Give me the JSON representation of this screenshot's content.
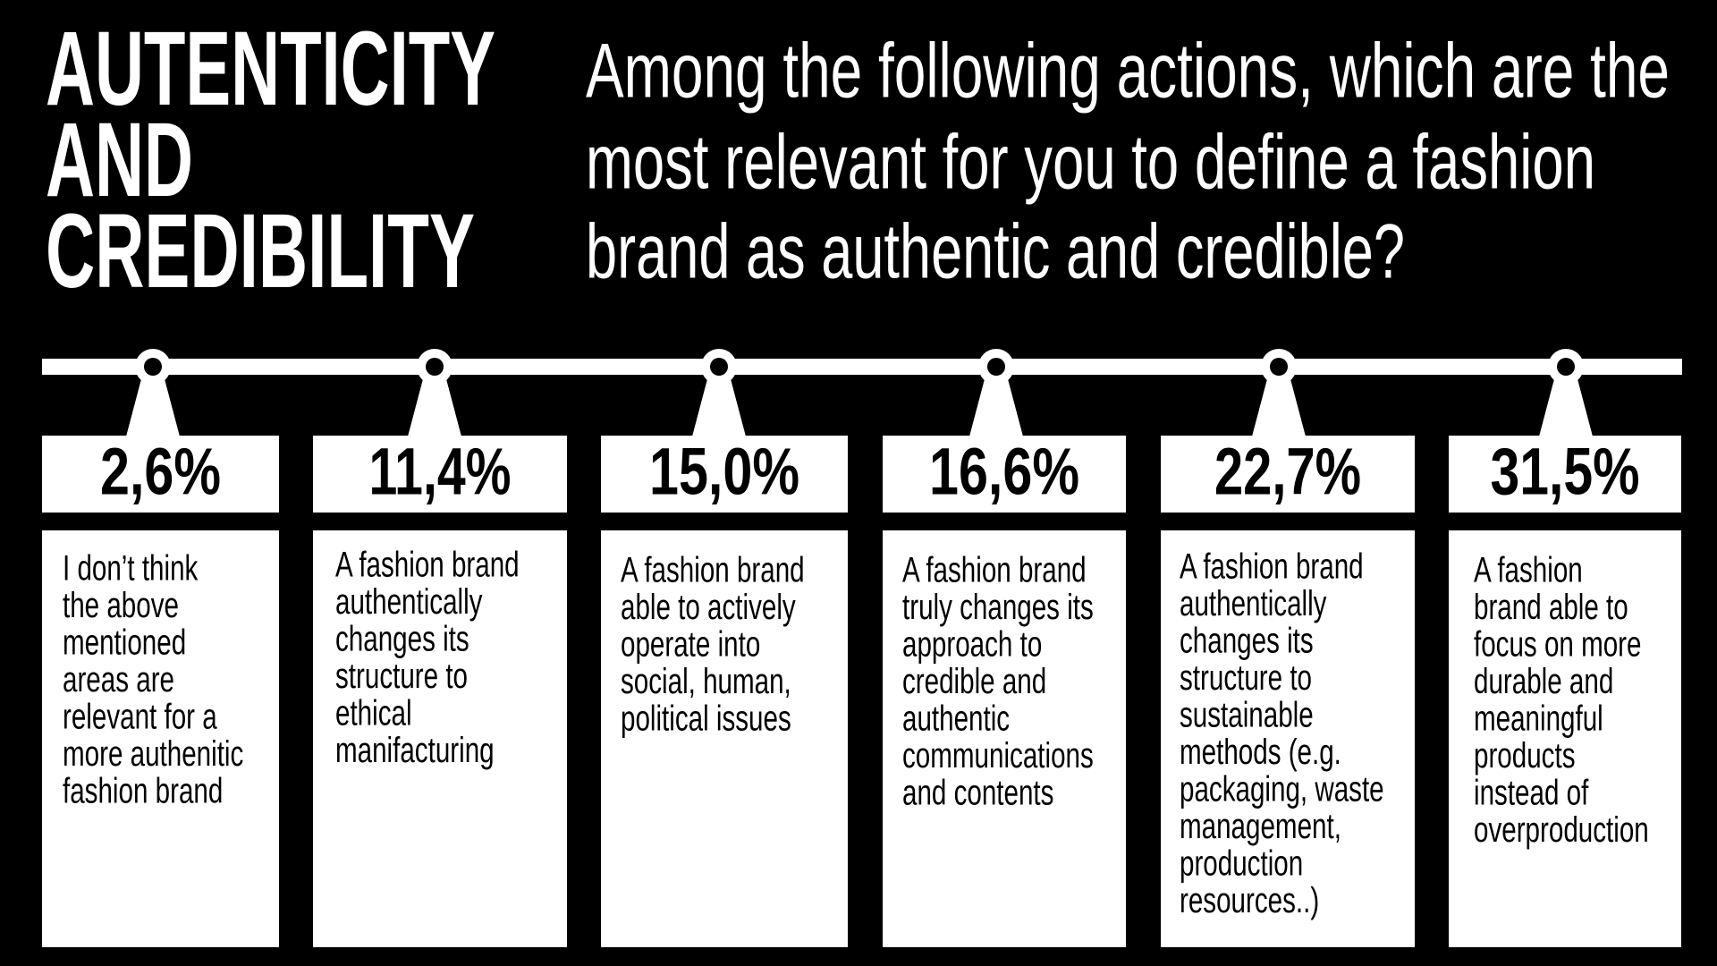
{
  "title": {
    "lines": [
      "AUTENTICITY",
      "AND",
      "CREDIBILITY"
    ]
  },
  "question": {
    "lines": [
      "Among the following actions, which are the",
      "most relevant for you to define a fashion",
      "brand as authentic and credible?"
    ]
  },
  "items": [
    {
      "percent": "2,6%",
      "lines": [
        "I don’t think",
        "the above",
        "mentioned",
        "areas are",
        "relevant for a",
        "more authenitic",
        "fashion brand"
      ]
    },
    {
      "percent": "11,4%",
      "lines": [
        "A fashion brand",
        "authentically",
        "changes its",
        "structure to",
        "ethical",
        "manifacturing"
      ]
    },
    {
      "percent": "15,0%",
      "lines": [
        "A fashion brand",
        "able to actively",
        "operate into",
        "social, human,",
        "political issues"
      ]
    },
    {
      "percent": "16,6%",
      "lines": [
        "A fashion brand",
        "truly changes its",
        "approach to",
        "credible and",
        "authentic",
        "communications",
        "and contents"
      ]
    },
    {
      "percent": "22,7%",
      "lines": [
        "A fashion brand",
        "authentically",
        "changes its",
        "structure to",
        "sustainable",
        "methods (e.g.",
        "packaging, waste",
        "management,",
        "production",
        "resources..)"
      ]
    },
    {
      "percent": "31,5%",
      "lines": [
        "A fashion",
        "brand able to",
        "focus on more",
        "durable and",
        "meaningful",
        "products",
        "instead of",
        "overproduction"
      ]
    }
  ]
}
